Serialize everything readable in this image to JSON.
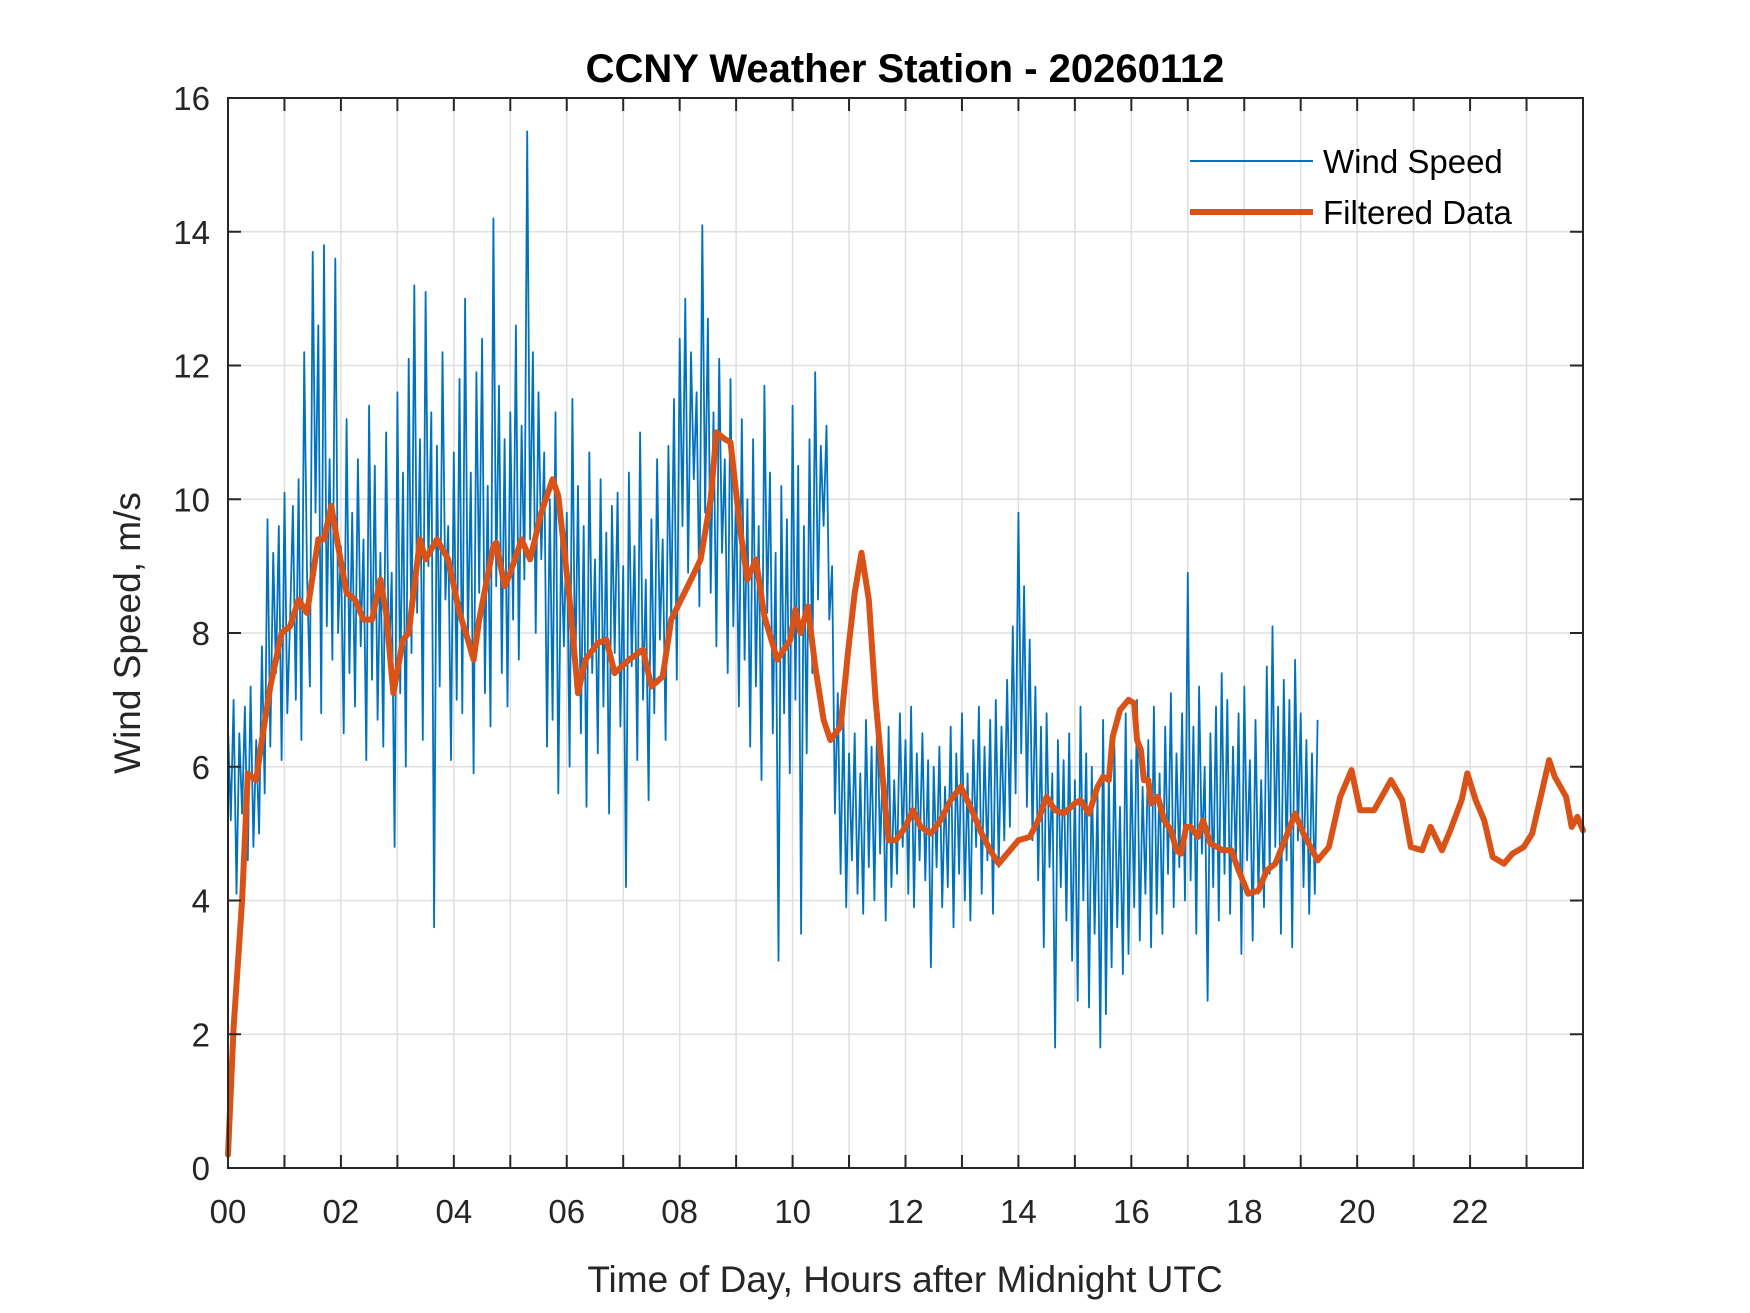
{
  "chart_data": {
    "type": "line",
    "title": "CCNY Weather Station - 20260112",
    "xlabel": "Time of Day, Hours after Midnight UTC",
    "ylabel": "Wind Speed, m/s",
    "xlim": [
      0,
      24
    ],
    "ylim": [
      0,
      16
    ],
    "xticks": [
      0,
      2,
      4,
      6,
      8,
      10,
      12,
      14,
      16,
      18,
      20,
      22
    ],
    "xtick_labels": [
      "00",
      "02",
      "04",
      "06",
      "08",
      "10",
      "12",
      "14",
      "16",
      "18",
      "20",
      "22"
    ],
    "xminor_ticks": [
      1,
      3,
      5,
      7,
      9,
      11,
      13,
      15,
      17,
      19,
      21,
      23
    ],
    "yticks": [
      0,
      2,
      4,
      6,
      8,
      10,
      12,
      14,
      16
    ],
    "ytick_labels": [
      "0",
      "2",
      "4",
      "6",
      "8",
      "10",
      "12",
      "14",
      "16"
    ],
    "grid": true,
    "legend": {
      "position": "top-right",
      "entries": [
        "Wind Speed",
        "Filtered Data"
      ]
    },
    "series": [
      {
        "name": "Wind Speed",
        "color": "#0072BD",
        "x_step_hours": 0.05,
        "x_start": 0,
        "values": [
          6.6,
          5.2,
          7.0,
          4.1,
          6.5,
          5.3,
          6.9,
          4.6,
          7.2,
          4.8,
          6.4,
          5.0,
          7.8,
          5.6,
          9.7,
          6.3,
          9.2,
          7.4,
          9.6,
          6.1,
          10.1,
          6.8,
          8.2,
          9.9,
          7.0,
          10.3,
          6.4,
          12.2,
          8.9,
          7.2,
          13.7,
          9.8,
          12.6,
          6.8,
          13.8,
          8.1,
          10.6,
          7.6,
          13.6,
          8.0,
          9.3,
          6.5,
          11.2,
          7.4,
          9.8,
          6.9,
          10.6,
          7.8,
          9.4,
          6.1,
          11.4,
          7.3,
          10.5,
          6.7,
          9.2,
          6.3,
          11.0,
          7.5,
          8.9,
          4.8,
          11.6,
          7.1,
          10.4,
          6.0,
          12.1,
          7.7,
          13.2,
          8.3,
          10.9,
          6.4,
          13.1,
          9.0,
          11.3,
          3.6,
          10.8,
          7.2,
          12.2,
          8.5,
          9.6,
          6.1,
          10.7,
          7.0,
          11.8,
          6.8,
          13.0,
          7.9,
          10.4,
          5.9,
          11.9,
          8.6,
          12.4,
          7.1,
          10.2,
          6.6,
          14.2,
          8.7,
          11.7,
          7.4,
          10.9,
          6.9,
          11.3,
          8.2,
          12.6,
          7.6,
          11.1,
          8.8,
          15.5,
          9.4,
          12.2,
          8.0,
          11.6,
          9.1,
          10.7,
          6.3,
          10.0,
          6.7,
          11.3,
          5.6,
          9.4,
          7.8,
          9.8,
          6.0,
          11.5,
          7.2,
          10.2,
          6.5,
          9.6,
          5.4,
          10.7,
          7.4,
          9.1,
          6.2,
          10.3,
          6.9,
          9.5,
          5.3,
          9.9,
          7.7,
          10.1,
          6.6,
          9.0,
          4.2,
          10.4,
          7.5,
          9.3,
          6.1,
          11.0,
          7.0,
          8.8,
          5.5,
          9.7,
          6.8,
          10.6,
          7.9,
          9.4,
          6.4,
          10.8,
          8.2,
          11.5,
          7.3,
          12.4,
          9.6,
          13.0,
          8.9,
          12.2,
          10.3,
          11.6,
          8.4,
          14.1,
          9.8,
          12.7,
          8.6,
          11.3,
          7.8,
          12.1,
          9.2,
          10.6,
          7.4,
          11.8,
          8.1,
          10.2,
          6.9,
          11.2,
          7.6,
          10.0,
          6.3,
          10.9,
          7.2,
          9.6,
          5.8,
          11.7,
          8.3,
          10.4,
          6.5,
          9.2,
          3.1,
          10.2,
          6.8,
          9.7,
          5.9,
          11.4,
          7.0,
          10.5,
          3.5,
          9.6,
          6.2,
          10.9,
          7.4,
          11.9,
          8.5,
          10.8,
          9.6,
          11.1,
          8.2,
          9.0,
          5.3,
          7.1,
          4.4,
          6.8,
          3.9,
          6.2,
          4.6,
          6.5,
          4.1,
          5.9,
          3.8,
          6.7,
          4.5,
          6.3,
          4.0,
          6.9,
          4.7,
          6.1,
          3.7,
          6.6,
          4.2,
          5.8,
          4.4,
          6.8,
          4.8,
          6.4,
          4.1,
          6.9,
          3.9,
          6.2,
          4.6,
          6.5,
          4.3,
          6.1,
          3.0,
          6.0,
          4.5,
          6.3,
          3.9,
          5.7,
          4.2,
          6.6,
          3.6,
          6.2,
          4.4,
          6.8,
          4.0,
          5.9,
          3.7,
          6.4,
          4.8,
          6.9,
          4.1,
          6.3,
          4.6,
          6.7,
          3.8,
          7.0,
          4.5,
          6.6,
          4.9,
          7.3,
          5.1,
          8.1,
          5.6,
          9.8,
          6.2,
          8.7,
          5.4,
          7.9,
          4.9,
          7.2,
          4.3,
          6.6,
          3.3,
          6.8,
          4.5,
          5.9,
          1.8,
          6.4,
          4.2,
          6.1,
          3.7,
          6.5,
          3.1,
          5.8,
          2.5,
          6.9,
          4.0,
          6.2,
          2.4,
          6.0,
          3.5,
          5.6,
          1.8,
          6.7,
          2.3,
          5.9,
          3.0,
          6.3,
          3.6,
          5.4,
          2.9,
          6.8,
          3.2,
          6.1,
          3.9,
          7.0,
          3.4,
          5.7,
          4.1,
          6.4,
          3.3,
          6.9,
          3.8,
          5.9,
          3.5,
          6.6,
          4.4,
          7.1,
          3.9,
          6.2,
          4.5,
          6.8,
          4.0,
          8.9,
          4.3,
          6.6,
          3.5,
          7.2,
          4.7,
          6.0,
          2.5,
          6.5,
          4.2,
          6.9,
          3.7,
          7.4,
          4.4,
          7.0,
          3.8,
          6.3,
          4.5,
          6.8,
          3.2,
          7.2,
          4.6,
          6.1,
          3.4,
          6.7,
          4.1,
          5.8,
          3.9,
          7.5,
          4.4,
          8.1,
          4.8,
          6.9,
          3.5,
          7.3,
          4.6,
          7.0,
          3.3,
          7.6,
          4.9,
          6.8,
          4.2,
          6.4,
          3.8,
          6.2,
          4.1,
          6.7
        ]
      },
      {
        "name": "Filtered Data",
        "color": "#D95319",
        "points": [
          [
            0.0,
            0.2
          ],
          [
            0.1,
            2.1
          ],
          [
            0.25,
            4.0
          ],
          [
            0.35,
            5.9
          ],
          [
            0.5,
            5.8
          ],
          [
            0.6,
            6.4
          ],
          [
            0.75,
            7.2
          ],
          [
            0.95,
            8.0
          ],
          [
            1.1,
            8.1
          ],
          [
            1.25,
            8.5
          ],
          [
            1.4,
            8.3
          ],
          [
            1.6,
            9.4
          ],
          [
            1.7,
            9.4
          ],
          [
            1.83,
            9.9
          ],
          [
            1.95,
            9.3
          ],
          [
            2.1,
            8.6
          ],
          [
            2.25,
            8.5
          ],
          [
            2.4,
            8.2
          ],
          [
            2.55,
            8.2
          ],
          [
            2.7,
            8.8
          ],
          [
            2.8,
            8.3
          ],
          [
            2.93,
            7.1
          ],
          [
            3.1,
            7.9
          ],
          [
            3.2,
            8.0
          ],
          [
            3.4,
            9.4
          ],
          [
            3.5,
            9.1
          ],
          [
            3.7,
            9.4
          ],
          [
            3.9,
            9.1
          ],
          [
            4.1,
            8.3
          ],
          [
            4.25,
            7.9
          ],
          [
            4.35,
            7.6
          ],
          [
            4.45,
            8.2
          ],
          [
            4.7,
            9.3
          ],
          [
            4.75,
            9.35
          ],
          [
            4.9,
            8.7
          ],
          [
            5.0,
            8.9
          ],
          [
            5.2,
            9.4
          ],
          [
            5.35,
            9.1
          ],
          [
            5.55,
            9.8
          ],
          [
            5.75,
            10.3
          ],
          [
            5.85,
            10.05
          ],
          [
            6.05,
            8.5
          ],
          [
            6.2,
            7.1
          ],
          [
            6.33,
            7.6
          ],
          [
            6.55,
            7.85
          ],
          [
            6.7,
            7.9
          ],
          [
            6.85,
            7.4
          ],
          [
            7.1,
            7.6
          ],
          [
            7.35,
            7.75
          ],
          [
            7.5,
            7.2
          ],
          [
            7.7,
            7.35
          ],
          [
            7.85,
            8.2
          ],
          [
            8.2,
            8.8
          ],
          [
            8.37,
            9.1
          ],
          [
            8.55,
            10.0
          ],
          [
            8.65,
            11.0
          ],
          [
            8.8,
            10.9
          ],
          [
            8.9,
            10.85
          ],
          [
            9.08,
            9.5
          ],
          [
            9.2,
            8.8
          ],
          [
            9.35,
            9.1
          ],
          [
            9.5,
            8.25
          ],
          [
            9.73,
            7.6
          ],
          [
            9.96,
            7.9
          ],
          [
            10.05,
            8.35
          ],
          [
            10.14,
            8.0
          ],
          [
            10.27,
            8.4
          ],
          [
            10.4,
            7.5
          ],
          [
            10.55,
            6.7
          ],
          [
            10.67,
            6.4
          ],
          [
            10.85,
            6.6
          ],
          [
            10.98,
            7.7
          ],
          [
            11.1,
            8.6
          ],
          [
            11.22,
            9.2
          ],
          [
            11.35,
            8.5
          ],
          [
            11.47,
            7.0
          ],
          [
            11.6,
            5.8
          ],
          [
            11.7,
            4.9
          ],
          [
            11.83,
            4.9
          ],
          [
            12.0,
            5.1
          ],
          [
            12.13,
            5.35
          ],
          [
            12.27,
            5.1
          ],
          [
            12.45,
            5.0
          ],
          [
            12.62,
            5.2
          ],
          [
            12.8,
            5.5
          ],
          [
            12.98,
            5.7
          ],
          [
            13.15,
            5.4
          ],
          [
            13.35,
            5.0
          ],
          [
            13.5,
            4.75
          ],
          [
            13.65,
            4.55
          ],
          [
            13.8,
            4.7
          ],
          [
            14.0,
            4.9
          ],
          [
            14.2,
            4.95
          ],
          [
            14.35,
            5.2
          ],
          [
            14.5,
            5.55
          ],
          [
            14.65,
            5.35
          ],
          [
            14.8,
            5.3
          ],
          [
            15.0,
            5.45
          ],
          [
            15.1,
            5.5
          ],
          [
            15.25,
            5.3
          ],
          [
            15.4,
            5.7
          ],
          [
            15.5,
            5.85
          ],
          [
            15.6,
            5.8
          ],
          [
            15.67,
            6.45
          ],
          [
            15.8,
            6.85
          ],
          [
            15.95,
            7.0
          ],
          [
            16.05,
            6.95
          ],
          [
            16.1,
            6.4
          ],
          [
            16.17,
            6.25
          ],
          [
            16.22,
            5.8
          ],
          [
            16.3,
            5.8
          ],
          [
            16.35,
            5.45
          ],
          [
            16.47,
            5.55
          ],
          [
            16.58,
            5.2
          ],
          [
            16.7,
            5.05
          ],
          [
            16.8,
            4.75
          ],
          [
            16.88,
            4.7
          ],
          [
            16.97,
            5.1
          ],
          [
            17.05,
            5.1
          ],
          [
            17.18,
            4.95
          ],
          [
            17.27,
            5.2
          ],
          [
            17.4,
            4.85
          ],
          [
            17.52,
            4.8
          ],
          [
            17.62,
            4.75
          ],
          [
            17.77,
            4.75
          ],
          [
            17.9,
            4.45
          ],
          [
            18.07,
            4.1
          ],
          [
            18.25,
            4.15
          ],
          [
            18.4,
            4.45
          ],
          [
            18.55,
            4.55
          ],
          [
            18.75,
            4.97
          ],
          [
            18.9,
            5.3
          ],
          [
            19.05,
            5.0
          ],
          [
            19.3,
            4.6
          ],
          [
            19.5,
            4.8
          ],
          [
            19.7,
            5.55
          ],
          [
            19.9,
            5.95
          ],
          [
            20.05,
            5.35
          ],
          [
            20.3,
            5.35
          ],
          [
            20.5,
            5.65
          ],
          [
            20.6,
            5.8
          ],
          [
            20.8,
            5.5
          ],
          [
            20.95,
            4.8
          ],
          [
            21.15,
            4.75
          ],
          [
            21.3,
            5.1
          ],
          [
            21.5,
            4.75
          ],
          [
            21.65,
            5.05
          ],
          [
            21.85,
            5.5
          ],
          [
            21.95,
            5.9
          ],
          [
            22.1,
            5.5
          ],
          [
            22.25,
            5.2
          ],
          [
            22.4,
            4.65
          ],
          [
            22.6,
            4.55
          ],
          [
            22.75,
            4.7
          ],
          [
            22.95,
            4.8
          ],
          [
            23.1,
            5.0
          ],
          [
            23.25,
            5.55
          ],
          [
            23.4,
            6.1
          ],
          [
            23.5,
            5.85
          ],
          [
            23.7,
            5.55
          ],
          [
            23.8,
            5.1
          ],
          [
            23.9,
            5.25
          ],
          [
            24.0,
            5.05
          ]
        ]
      }
    ]
  }
}
